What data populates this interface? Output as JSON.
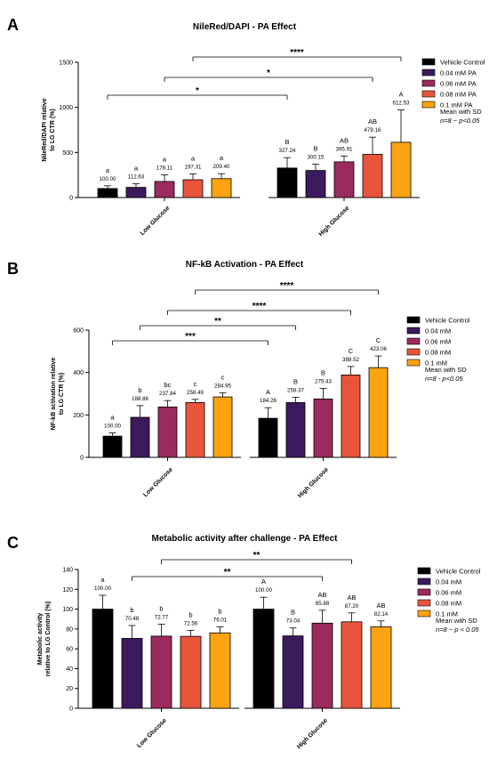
{
  "chart_data": [
    {
      "type": "bar",
      "panel": "A",
      "title": "NileRed/DAPI - PA Effect",
      "ylabel": "NileRed/DAPI relative to LG CTR (%)",
      "ylim": [
        0,
        1500
      ],
      "yticks": [
        0,
        500,
        1000,
        1500
      ],
      "groups": [
        "Low Glucose",
        "High Glucose"
      ],
      "series": [
        {
          "name": "Vehicle Control",
          "color": "#000000",
          "values": [
            100.0,
            327.24
          ],
          "errors": [
            30,
            115
          ],
          "letters": [
            "a",
            "B"
          ]
        },
        {
          "name": "0.04 mM PA",
          "color": "#3b1a5e",
          "values": [
            112.63,
            300.15
          ],
          "errors": [
            40,
            70
          ],
          "letters": [
            "a",
            "B"
          ]
        },
        {
          "name": "0.06 mM PA",
          "color": "#9b2a5e",
          "values": [
            178.11,
            395.91
          ],
          "errors": [
            75,
            65
          ],
          "letters": [
            "a",
            "AB"
          ]
        },
        {
          "name": "0.08 mM PA",
          "color": "#e8553b",
          "values": [
            197.31,
            479.16
          ],
          "errors": [
            65,
            190
          ],
          "letters": [
            "a",
            "AB"
          ]
        },
        {
          "name": "0.1 mM PA",
          "color": "#fba311",
          "values": [
            209.4,
            612.53
          ],
          "errors": [
            55,
            360
          ],
          "letters": [
            "a",
            "A"
          ]
        }
      ],
      "comparisons": [
        {
          "from": [
            0,
            0
          ],
          "to": [
            1,
            0
          ],
          "label": "*"
        },
        {
          "from": [
            0,
            2
          ],
          "to": [
            1,
            3
          ],
          "label": "*"
        },
        {
          "from": [
            0,
            3
          ],
          "to": [
            1,
            4
          ],
          "label": "****"
        }
      ],
      "note_line1": "Mean with SD",
      "note_line2": "n=8 ~ p<0.05"
    },
    {
      "type": "bar",
      "panel": "B",
      "title": "NF-kB Activation - PA Effect",
      "ylabel": "NF-kB activation relative to LG CTR (%)",
      "ylim": [
        0,
        600
      ],
      "yticks": [
        0,
        200,
        400,
        600
      ],
      "groups": [
        "Low Glucose",
        "High Glucose"
      ],
      "series": [
        {
          "name": "Vehicle Control",
          "color": "#000000",
          "values": [
            100.0,
            184.26
          ],
          "errors": [
            15,
            50
          ],
          "letters": [
            "a",
            "A"
          ]
        },
        {
          "name": "0.04 mM",
          "color": "#3b1a5e",
          "values": [
            188.86,
            258.37
          ],
          "errors": [
            55,
            25
          ],
          "letters": [
            "b",
            "B"
          ]
        },
        {
          "name": "0.06 mM",
          "color": "#9b2a5e",
          "values": [
            237.84,
            275.43
          ],
          "errors": [
            30,
            50
          ],
          "letters": [
            "bc",
            "B"
          ]
        },
        {
          "name": "0.08 mM",
          "color": "#e8553b",
          "values": [
            258.49,
            388.52
          ],
          "errors": [
            15,
            40
          ],
          "letters": [
            "c",
            "C"
          ]
        },
        {
          "name": "0.1 mM",
          "color": "#fba311",
          "values": [
            284.95,
            423.06
          ],
          "errors": [
            20,
            55
          ],
          "letters": [
            "c",
            "C"
          ]
        }
      ],
      "comparisons": [
        {
          "from": [
            0,
            0
          ],
          "to": [
            1,
            0
          ],
          "label": "***"
        },
        {
          "from": [
            0,
            1
          ],
          "to": [
            1,
            1
          ],
          "label": "**"
        },
        {
          "from": [
            0,
            2
          ],
          "to": [
            1,
            3
          ],
          "label": "****"
        },
        {
          "from": [
            0,
            3
          ],
          "to": [
            1,
            4
          ],
          "label": "****"
        }
      ],
      "note_line1": "Mean with SD",
      "note_line2": "n=8 - p<0.05"
    },
    {
      "type": "bar",
      "panel": "C",
      "title": "Metabolic activity after challenge - PA Effect",
      "ylabel": "Metabolic activity relative to LG Control (%)",
      "ylim": [
        0,
        140
      ],
      "yticks": [
        0,
        20,
        40,
        60,
        80,
        100,
        120,
        140
      ],
      "groups": [
        "Low Glucose",
        "High Glucose"
      ],
      "series": [
        {
          "name": "Vehicle Control",
          "color": "#000000",
          "values": [
            100.0,
            100.0
          ],
          "errors": [
            14,
            12
          ],
          "letters": [
            "a",
            "A"
          ]
        },
        {
          "name": "0.04 mM",
          "color": "#3b1a5e",
          "values": [
            70.48,
            73.04
          ],
          "errors": [
            13,
            8
          ],
          "letters": [
            "b",
            "B"
          ]
        },
        {
          "name": "0.06 mM",
          "color": "#9b2a5e",
          "values": [
            72.77,
            85.88
          ],
          "errors": [
            12,
            13
          ],
          "letters": [
            "b",
            "AB"
          ]
        },
        {
          "name": "0.08 mM",
          "color": "#e8553b",
          "values": [
            72.56,
            87.2
          ],
          "errors": [
            6,
            9
          ],
          "letters": [
            "b",
            "AB"
          ]
        },
        {
          "name": "0.1 mM",
          "color": "#fba311",
          "values": [
            76.01,
            82.14
          ],
          "errors": [
            6,
            6
          ],
          "letters": [
            "b",
            "AB"
          ]
        }
      ],
      "comparisons": [
        {
          "from": [
            0,
            1
          ],
          "to": [
            1,
            2
          ],
          "label": "**"
        },
        {
          "from": [
            0,
            2
          ],
          "to": [
            1,
            3
          ],
          "label": "**"
        }
      ],
      "note_line1": "Mean with SD",
      "note_line2": "n=8 ~ p < 0.05"
    }
  ]
}
